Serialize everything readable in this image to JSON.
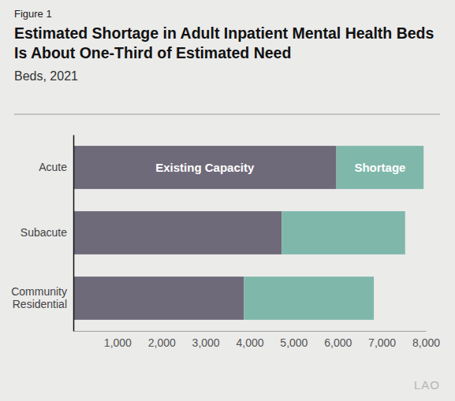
{
  "chart_data": {
    "type": "bar",
    "orientation": "horizontal",
    "stacked": true,
    "label": "Figure 1",
    "title": "Estimated Shortage in Adult Inpatient Mental Health Beds Is About One-Third of Estimated Need",
    "subtitle": "Beds, 2021",
    "categories": [
      "Acute",
      "Subacute",
      "Community Residential"
    ],
    "series": [
      {
        "name": "Existing Capacity",
        "color": "#6f6a7a",
        "values": [
          5970,
          4730,
          3870
        ]
      },
      {
        "name": "Shortage",
        "color": "#7fb8aa",
        "values": [
          1980,
          2800,
          2950
        ]
      }
    ],
    "xlim": [
      0,
      8000
    ],
    "xticks": [
      {
        "value": 1000,
        "label": "1,000"
      },
      {
        "value": 2000,
        "label": "2,000"
      },
      {
        "value": 3000,
        "label": "3,000"
      },
      {
        "value": 4000,
        "label": "4,000"
      },
      {
        "value": 5000,
        "label": "5,000"
      },
      {
        "value": 6000,
        "label": "6,000"
      },
      {
        "value": 7000,
        "label": "7,000"
      },
      {
        "value": 8000,
        "label": "8,000"
      }
    ],
    "grid": false,
    "logo": "LAO"
  }
}
